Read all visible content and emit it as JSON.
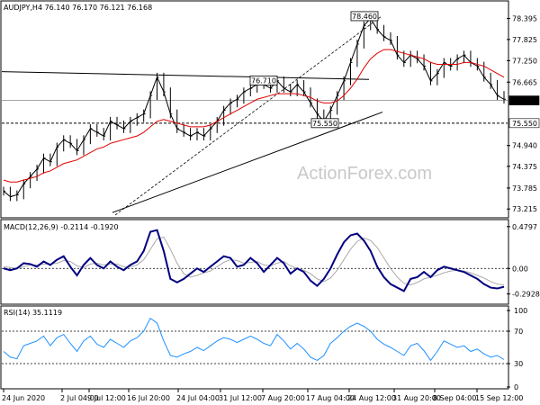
{
  "chart_data": [
    {
      "type": "candlestick",
      "title": "AUDJPY,H4  76.140 76.170 76.121 76.168",
      "watermark": "ActionForex.com",
      "ylim": [
        73.0,
        78.85
      ],
      "y_ticks": [
        "78.395",
        "77.825",
        "77.250",
        "76.665",
        "76.168",
        "75.550",
        "74.940",
        "74.375",
        "73.785",
        "73.215"
      ],
      "current_price": "76.168",
      "reference_level": "75.550",
      "annotations": [
        {
          "text": "78.460",
          "price": 78.46
        },
        {
          "text": "76.710",
          "price": 76.71
        },
        {
          "text": "75.550",
          "price": 75.55
        }
      ],
      "x_ticks": [
        "24 Jun 2020",
        "2 Jul 04:00",
        "9 Jul 12:00",
        "16 Jul 20:00",
        "24 Jul 04:00",
        "31 Jul 12:00",
        "7 Aug 20:00",
        "17 Aug 04:00",
        "24 Aug 12:00",
        "31 Aug 20:00",
        "8 Sep 04:00",
        "15 Sep 12:00"
      ],
      "close_series": [
        73.7,
        73.55,
        73.6,
        73.9,
        74.1,
        74.3,
        74.6,
        74.5,
        74.9,
        75.1,
        75.0,
        74.8,
        75.1,
        75.4,
        75.3,
        75.2,
        75.6,
        75.5,
        75.4,
        75.6,
        75.7,
        75.8,
        76.3,
        76.8,
        76.4,
        75.8,
        75.4,
        75.3,
        75.2,
        75.3,
        75.2,
        75.4,
        75.6,
        75.9,
        76.1,
        76.2,
        76.4,
        76.5,
        76.6,
        76.6,
        76.5,
        76.7,
        76.5,
        76.4,
        76.6,
        76.4,
        76.1,
        75.8,
        75.6,
        75.9,
        76.3,
        76.7,
        77.2,
        77.7,
        78.2,
        78.4,
        78.1,
        77.9,
        77.8,
        77.4,
        77.2,
        77.4,
        77.3,
        77.1,
        76.7,
        76.9,
        77.2,
        77.1,
        77.3,
        77.4,
        77.2,
        77.1,
        76.8,
        76.6,
        76.3,
        76.2
      ],
      "ma_series": [
        74.0,
        73.95,
        73.95,
        74.0,
        74.05,
        74.1,
        74.2,
        74.25,
        74.35,
        74.45,
        74.5,
        74.55,
        74.65,
        74.75,
        74.85,
        74.9,
        75.0,
        75.05,
        75.1,
        75.15,
        75.2,
        75.3,
        75.45,
        75.6,
        75.65,
        75.6,
        75.55,
        75.5,
        75.45,
        75.45,
        75.45,
        75.5,
        75.6,
        75.7,
        75.8,
        75.9,
        76.0,
        76.1,
        76.2,
        76.25,
        76.3,
        76.35,
        76.35,
        76.35,
        76.35,
        76.3,
        76.25,
        76.15,
        76.1,
        76.1,
        76.15,
        76.3,
        76.5,
        76.75,
        77.05,
        77.3,
        77.45,
        77.55,
        77.55,
        77.5,
        77.45,
        77.4,
        77.35,
        77.3,
        77.2,
        77.15,
        77.15,
        77.15,
        77.15,
        77.2,
        77.2,
        77.15,
        77.1,
        77.0,
        76.9,
        76.8
      ]
    },
    {
      "type": "line",
      "title": "MACD(12,26,9) -0.2114 -0.1920",
      "ylim": [
        -0.4,
        0.55
      ],
      "y_ticks": [
        "0.4797",
        "0.00",
        "-0.2928"
      ],
      "macd_series": [
        0.0,
        -0.02,
        0.0,
        0.06,
        0.05,
        0.02,
        0.08,
        0.04,
        0.1,
        0.14,
        0.02,
        -0.08,
        0.04,
        0.12,
        0.04,
        0.0,
        0.08,
        0.02,
        -0.02,
        0.04,
        0.08,
        0.2,
        0.42,
        0.44,
        0.2,
        -0.12,
        -0.16,
        -0.12,
        -0.06,
        0.0,
        -0.04,
        0.02,
        0.08,
        0.14,
        0.12,
        0.02,
        0.04,
        0.12,
        0.06,
        -0.04,
        0.04,
        0.12,
        0.06,
        -0.06,
        0.0,
        -0.04,
        -0.14,
        -0.2,
        -0.12,
        0.0,
        0.16,
        0.3,
        0.38,
        0.4,
        0.32,
        0.2,
        0.02,
        -0.1,
        -0.18,
        -0.22,
        -0.26,
        -0.12,
        -0.1,
        -0.04,
        -0.1,
        -0.02,
        0.02,
        0.0,
        -0.02,
        -0.04,
        -0.08,
        -0.12,
        -0.18,
        -0.22,
        -0.23,
        -0.21
      ],
      "signal_series": [
        0.02,
        0.01,
        0.0,
        0.02,
        0.04,
        0.04,
        0.05,
        0.05,
        0.06,
        0.09,
        0.08,
        0.03,
        0.01,
        0.05,
        0.06,
        0.04,
        0.05,
        0.05,
        0.02,
        0.02,
        0.04,
        0.1,
        0.22,
        0.34,
        0.36,
        0.22,
        0.06,
        -0.06,
        -0.1,
        -0.08,
        -0.05,
        -0.03,
        0.02,
        0.07,
        0.1,
        0.09,
        0.06,
        0.07,
        0.08,
        0.04,
        0.03,
        0.06,
        0.08,
        0.03,
        0.0,
        -0.02,
        -0.06,
        -0.12,
        -0.15,
        -0.11,
        -0.02,
        0.1,
        0.22,
        0.31,
        0.35,
        0.32,
        0.24,
        0.12,
        0.0,
        -0.1,
        -0.17,
        -0.19,
        -0.16,
        -0.12,
        -0.1,
        -0.08,
        -0.05,
        -0.03,
        -0.02,
        -0.03,
        -0.05,
        -0.08,
        -0.11,
        -0.15,
        -0.18,
        -0.19
      ]
    },
    {
      "type": "line",
      "title": "RSI(14) 35.1119",
      "ylim": [
        0,
        100
      ],
      "y_ticks": [
        "100",
        "70",
        "30",
        "0"
      ],
      "levels": [
        70,
        30
      ],
      "rsi_series": [
        45,
        38,
        36,
        52,
        55,
        58,
        64,
        52,
        62,
        66,
        55,
        45,
        58,
        64,
        54,
        50,
        60,
        55,
        50,
        58,
        62,
        70,
        86,
        80,
        58,
        40,
        38,
        42,
        45,
        50,
        46,
        52,
        58,
        62,
        60,
        56,
        60,
        64,
        60,
        55,
        52,
        66,
        58,
        48,
        55,
        48,
        38,
        34,
        40,
        55,
        62,
        70,
        76,
        80,
        76,
        70,
        60,
        54,
        50,
        45,
        40,
        52,
        55,
        46,
        34,
        45,
        58,
        54,
        50,
        52,
        45,
        48,
        42,
        38,
        40,
        35
      ]
    }
  ]
}
